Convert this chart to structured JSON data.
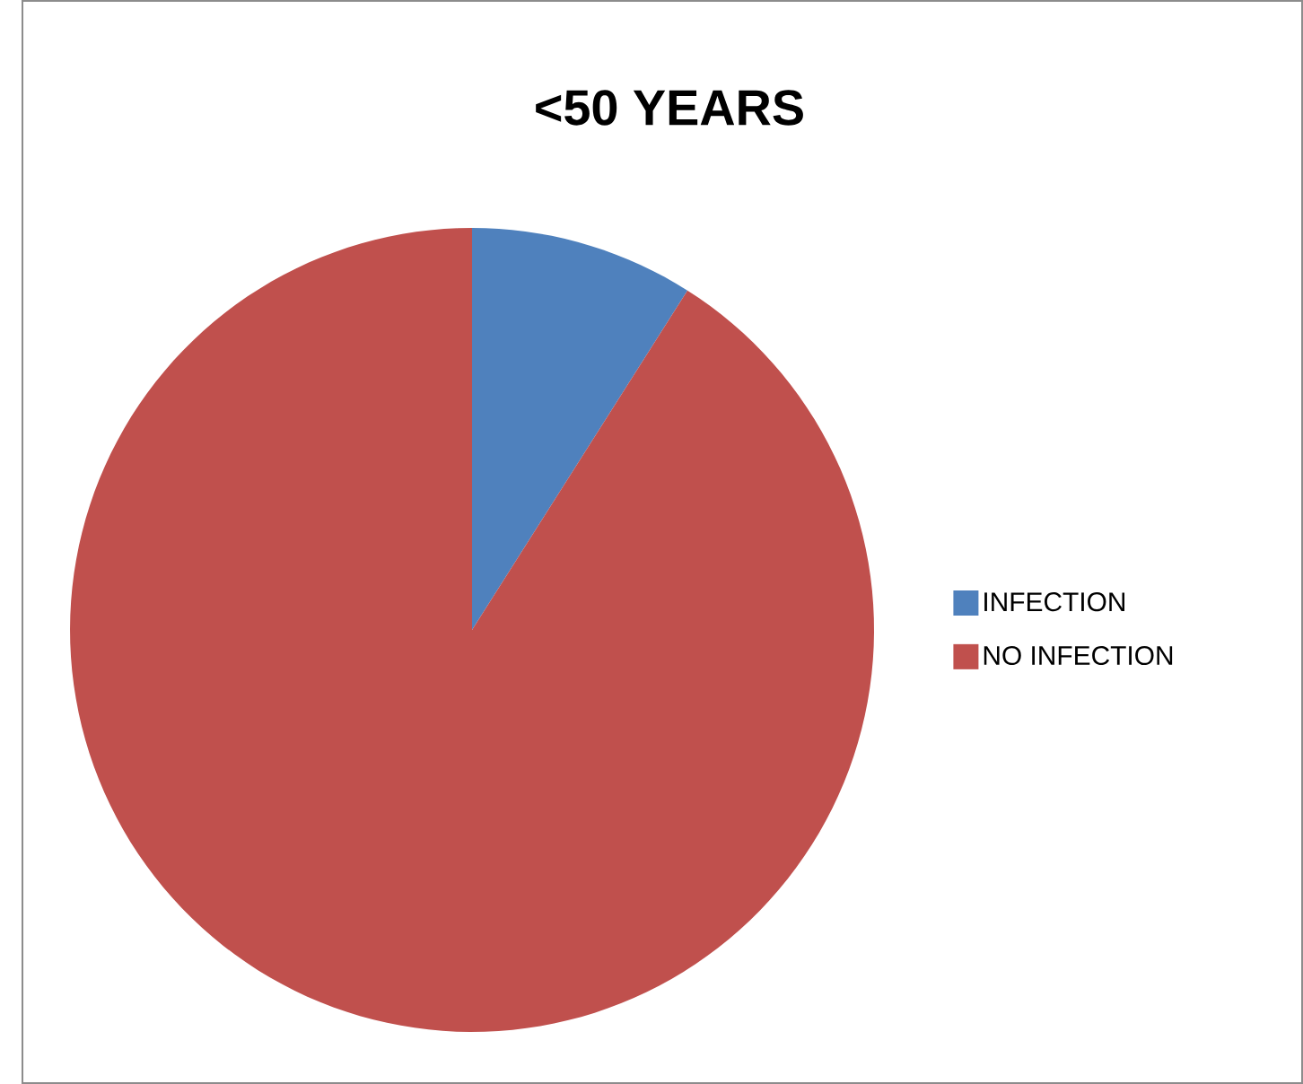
{
  "chart_data": {
    "type": "pie",
    "title": "<50 YEARS",
    "categories": [
      "INFECTION",
      "NO INFECTION"
    ],
    "values": [
      9,
      91
    ],
    "colors": [
      "#4f81bd",
      "#c0504d"
    ],
    "legend": "right"
  }
}
